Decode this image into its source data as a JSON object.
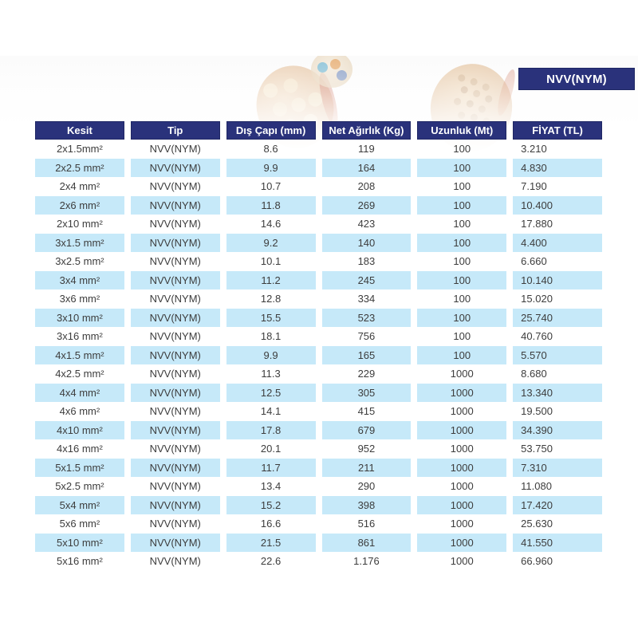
{
  "page": {
    "badge": "NVV(NYM)"
  },
  "colors": {
    "header_bg": "#2a327b",
    "header_text": "#ffffff",
    "row_alt_bg": "#c6e9f9",
    "cell_text": "#3d3d3d"
  },
  "table": {
    "columns": [
      "Kesit",
      "Tip",
      "Dış Çapı (mm)",
      "Net Ağırlık (Kg)",
      "Uzunluk (Mt)",
      "FİYAT (TL)"
    ],
    "rows": [
      [
        "2x1.5mm²",
        "NVV(NYM)",
        "8.6",
        "119",
        "100",
        "3.210"
      ],
      [
        "2x2.5 mm²",
        "NVV(NYM)",
        "9.9",
        "164",
        "100",
        "4.830"
      ],
      [
        "2x4 mm²",
        "NVV(NYM)",
        "10.7",
        "208",
        "100",
        "7.190"
      ],
      [
        "2x6 mm²",
        "NVV(NYM)",
        "11.8",
        "269",
        "100",
        "10.400"
      ],
      [
        "2x10 mm²",
        "NVV(NYM)",
        "14.6",
        "423",
        "100",
        "17.880"
      ],
      [
        "3x1.5 mm²",
        "NVV(NYM)",
        "9.2",
        "140",
        "100",
        "4.400"
      ],
      [
        "3x2.5 mm²",
        "NVV(NYM)",
        "10.1",
        "183",
        "100",
        "6.660"
      ],
      [
        "3x4 mm²",
        "NVV(NYM)",
        "11.2",
        "245",
        "100",
        "10.140"
      ],
      [
        "3x6 mm²",
        "NVV(NYM)",
        "12.8",
        "334",
        "100",
        "15.020"
      ],
      [
        "3x10 mm²",
        "NVV(NYM)",
        "15.5",
        "523",
        "100",
        "25.740"
      ],
      [
        "3x16 mm²",
        "NVV(NYM)",
        "18.1",
        "756",
        "100",
        "40.760"
      ],
      [
        "4x1.5 mm²",
        "NVV(NYM)",
        "9.9",
        "165",
        "100",
        "5.570"
      ],
      [
        "4x2.5 mm²",
        "NVV(NYM)",
        "11.3",
        "229",
        "1000",
        "8.680"
      ],
      [
        "4x4 mm²",
        "NVV(NYM)",
        "12.5",
        "305",
        "1000",
        "13.340"
      ],
      [
        "4x6 mm²",
        "NVV(NYM)",
        "14.1",
        "415",
        "1000",
        "19.500"
      ],
      [
        "4x10 mm²",
        "NVV(NYM)",
        "17.8",
        "679",
        "1000",
        "34.390"
      ],
      [
        "4x16 mm²",
        "NVV(NYM)",
        "20.1",
        "952",
        "1000",
        "53.750"
      ],
      [
        "5x1.5 mm²",
        "NVV(NYM)",
        "11.7",
        "211",
        "1000",
        "7.310"
      ],
      [
        "5x2.5 mm²",
        "NVV(NYM)",
        "13.4",
        "290",
        "1000",
        "11.080"
      ],
      [
        "5x4 mm²",
        "NVV(NYM)",
        "15.2",
        "398",
        "1000",
        "17.420"
      ],
      [
        "5x6 mm²",
        "NVV(NYM)",
        "16.6",
        "516",
        "1000",
        "25.630"
      ],
      [
        "5x10 mm²",
        "NVV(NYM)",
        "21.5",
        "861",
        "1000",
        "41.550"
      ],
      [
        "5x16 mm²",
        "NVV(NYM)",
        "22.6",
        "1.176",
        "1000",
        "66.960"
      ]
    ]
  }
}
